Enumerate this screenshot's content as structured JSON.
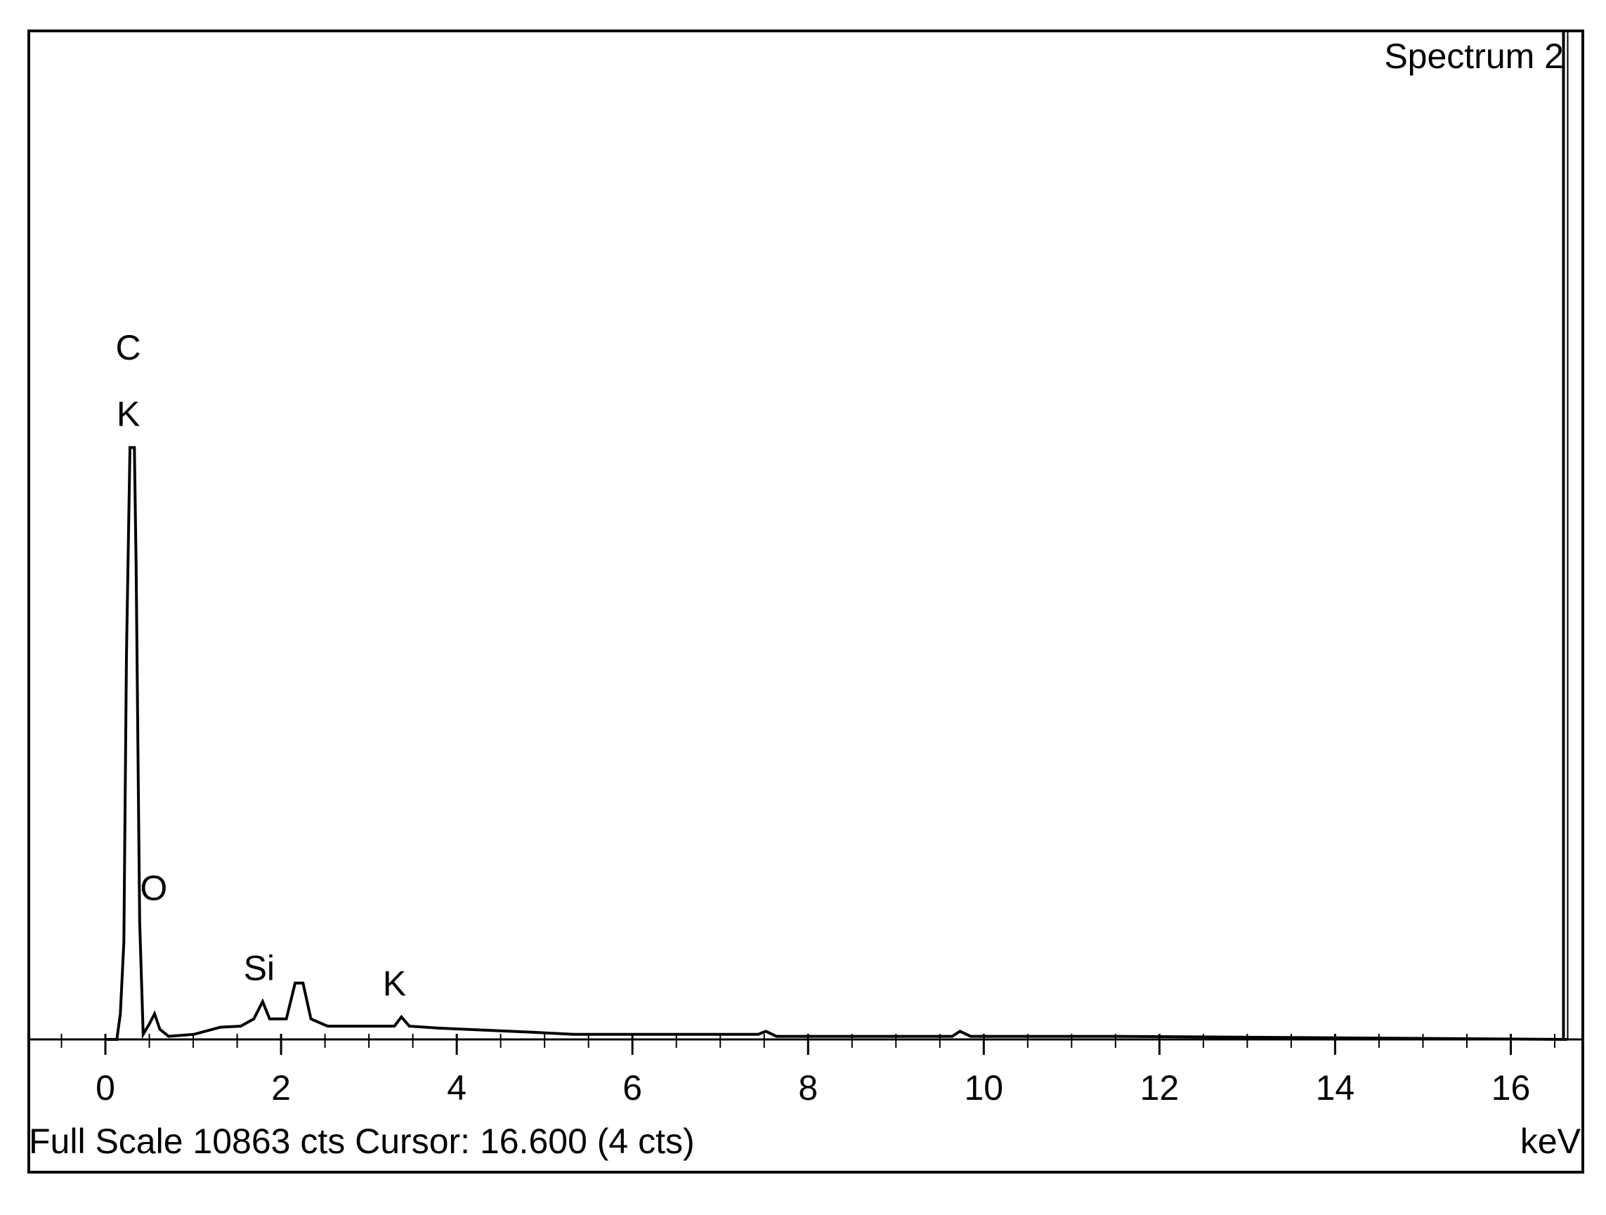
{
  "chart_data": {
    "type": "line",
    "title": "Spectrum 2",
    "x_label": "keV",
    "footer": "Full Scale 10863 cts Cursor: 16.600  (4 cts)",
    "x": [
      0.0,
      0.13,
      0.17,
      0.21,
      0.24,
      0.28,
      0.33,
      0.35,
      0.39,
      0.43,
      0.5,
      0.56,
      0.62,
      0.72,
      1.01,
      1.31,
      1.54,
      1.69,
      1.79,
      1.87,
      2.06,
      2.16,
      2.25,
      2.34,
      2.53,
      3.29,
      3.37,
      3.46,
      3.81,
      4.86,
      5.33,
      7.43,
      7.52,
      7.64,
      9.64,
      9.73,
      9.85,
      11.51,
      16.64
    ],
    "values": [
      0,
      0,
      276,
      1048,
      4136,
      6375,
      6375,
      5074,
      1268,
      55,
      165,
      276,
      110,
      33,
      55,
      132,
      143,
      221,
      408,
      221,
      221,
      607,
      607,
      221,
      143,
      143,
      243,
      143,
      121,
      77,
      55,
      55,
      88,
      33,
      33,
      88,
      33,
      33,
      0
    ],
    "color": "#000000",
    "xlim": [
      -0.872,
      16.82
    ],
    "ylim": [
      0,
      10863
    ],
    "xticks": [
      0,
      2,
      4,
      6,
      8,
      10,
      12,
      14,
      16
    ],
    "xminorticks": [
      -0.5,
      0.5,
      1,
      1.5,
      2.5,
      3,
      3.5,
      4.5,
      5,
      5.5,
      6.5,
      7,
      7.5,
      8.5,
      9,
      9.5,
      10.5,
      11,
      11.5,
      12.5,
      13,
      13.5,
      14.5,
      15,
      15.5,
      16.5
    ],
    "cursor": 16.6,
    "annotations": [
      {
        "text": "C",
        "x": 0.26,
        "y": 7423
      },
      {
        "text": "K",
        "x": 0.26,
        "y": 6706
      },
      {
        "text": "O",
        "x": 0.55,
        "y": 1600
      },
      {
        "text": "Si",
        "x": 1.75,
        "y": 739
      },
      {
        "text": "K",
        "x": 3.29,
        "y": 574
      }
    ]
  }
}
